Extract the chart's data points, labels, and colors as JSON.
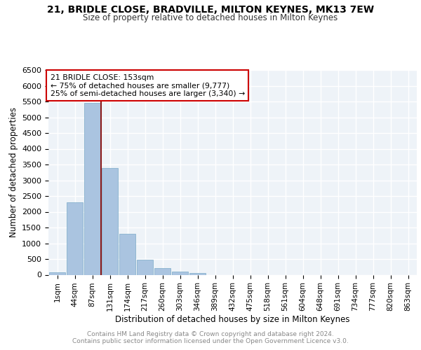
{
  "title": "21, BRIDLE CLOSE, BRADVILLE, MILTON KEYNES, MK13 7EW",
  "subtitle": "Size of property relative to detached houses in Milton Keynes",
  "xlabel": "Distribution of detached houses by size in Milton Keynes",
  "ylabel": "Number of detached properties",
  "footnote1": "Contains HM Land Registry data © Crown copyright and database right 2024.",
  "footnote2": "Contains public sector information licensed under the Open Government Licence v3.0.",
  "bar_labels": [
    "1sqm",
    "44sqm",
    "87sqm",
    "131sqm",
    "174sqm",
    "217sqm",
    "260sqm",
    "303sqm",
    "346sqm",
    "389sqm",
    "432sqm",
    "475sqm",
    "518sqm",
    "561sqm",
    "604sqm",
    "648sqm",
    "691sqm",
    "734sqm",
    "777sqm",
    "820sqm",
    "863sqm"
  ],
  "bar_values": [
    70,
    2300,
    5450,
    3400,
    1300,
    475,
    215,
    90,
    60,
    0,
    0,
    0,
    0,
    0,
    0,
    0,
    0,
    0,
    0,
    0,
    0
  ],
  "bar_color": "#aac4e0",
  "bar_edgecolor": "#7aaac8",
  "bg_color": "#eef3f8",
  "grid_color": "#ffffff",
  "vline_color": "#8b1a1a",
  "annotation_text": "21 BRIDLE CLOSE: 153sqm\n← 75% of detached houses are smaller (9,777)\n25% of semi-detached houses are larger (3,340) →",
  "annotation_box_color": "#ffffff",
  "annotation_box_edgecolor": "#cc0000",
  "ylim": [
    0,
    6500
  ],
  "yticks": [
    0,
    500,
    1000,
    1500,
    2000,
    2500,
    3000,
    3500,
    4000,
    4500,
    5000,
    5500,
    6000,
    6500
  ]
}
